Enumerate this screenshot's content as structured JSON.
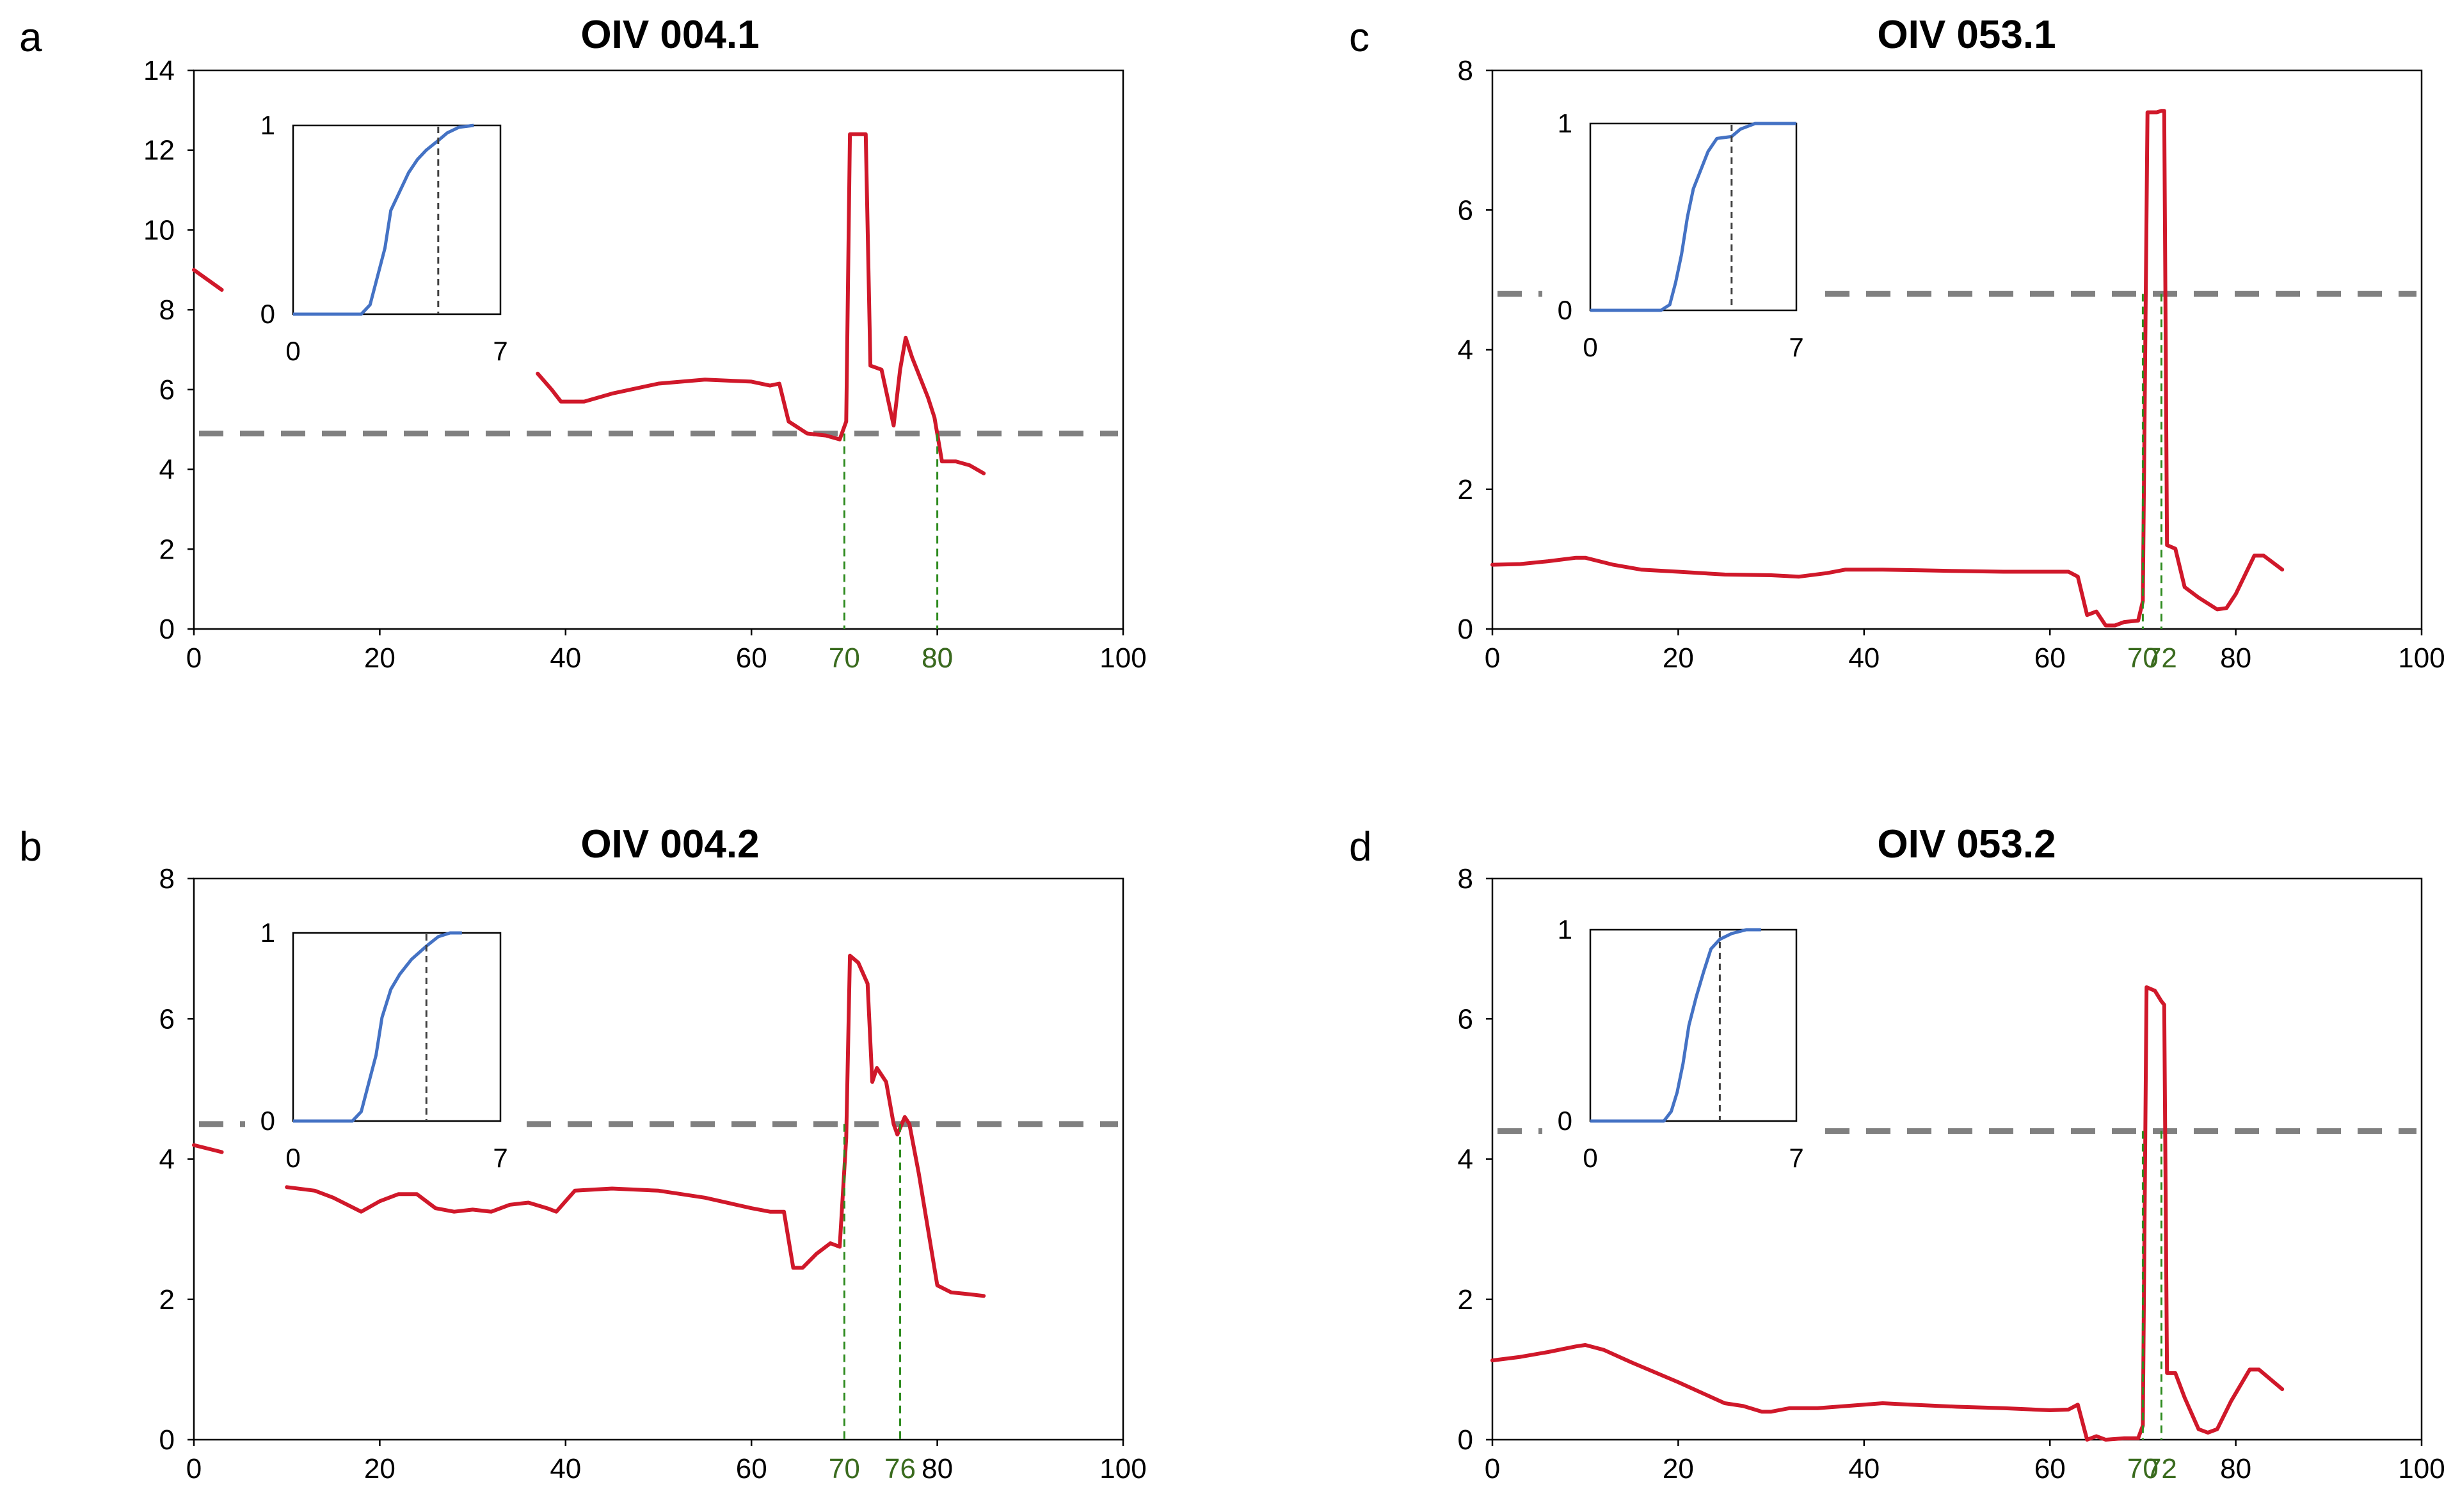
{
  "colors": {
    "series": "#d0182a",
    "threshold": "#808080",
    "marker": "#2e8b1f",
    "marker_label": "#3a6b1e",
    "inset_curve": "#4472c4",
    "inset_marker": "#404040",
    "axis": "#000000"
  },
  "chart_data": [
    {
      "panel": "a",
      "title": "OIV 004.1",
      "type": "line",
      "xlim": [
        0,
        100
      ],
      "ylim": [
        0,
        14
      ],
      "x_ticks": [
        0,
        20,
        40,
        60,
        80,
        100
      ],
      "y_ticks": [
        0,
        2,
        4,
        6,
        8,
        10,
        12,
        14
      ],
      "threshold": 4.9,
      "markers": [
        70,
        80
      ],
      "segments": [
        [
          [
            0,
            9.0
          ],
          [
            3,
            8.5
          ]
        ],
        [
          [
            37,
            6.4
          ],
          [
            38.5,
            6.0
          ],
          [
            39.5,
            5.7
          ],
          [
            42,
            5.7
          ],
          [
            45,
            5.9
          ],
          [
            50,
            6.15
          ],
          [
            55,
            6.25
          ],
          [
            60,
            6.2
          ],
          [
            62,
            6.1
          ],
          [
            63,
            6.15
          ],
          [
            64,
            5.2
          ],
          [
            66,
            4.9
          ],
          [
            68,
            4.85
          ],
          [
            69.5,
            4.75
          ],
          [
            70.2,
            5.2
          ],
          [
            70.6,
            12.4
          ],
          [
            71.6,
            12.4
          ],
          [
            72.3,
            12.4
          ],
          [
            72.8,
            6.6
          ],
          [
            74,
            6.5
          ],
          [
            75.3,
            5.1
          ],
          [
            76,
            6.5
          ],
          [
            76.6,
            7.3
          ],
          [
            77.3,
            6.8
          ],
          [
            79,
            5.8
          ],
          [
            79.7,
            5.3
          ],
          [
            80.5,
            4.2
          ],
          [
            82,
            4.2
          ],
          [
            83.5,
            4.1
          ],
          [
            85,
            3.9
          ]
        ]
      ],
      "inset": {
        "xlim": [
          0,
          7
        ],
        "ylim": [
          0,
          1
        ],
        "x_ticks": [
          0,
          7
        ],
        "y_ticks": [
          0,
          1
        ],
        "marker": 4.9,
        "cdf": [
          [
            0,
            0
          ],
          [
            2.3,
            0
          ],
          [
            2.6,
            0.05
          ],
          [
            2.85,
            0.2
          ],
          [
            3.1,
            0.35
          ],
          [
            3.3,
            0.55
          ],
          [
            3.6,
            0.65
          ],
          [
            3.9,
            0.75
          ],
          [
            4.2,
            0.82
          ],
          [
            4.5,
            0.87
          ],
          [
            4.9,
            0.92
          ],
          [
            5.2,
            0.96
          ],
          [
            5.6,
            0.99
          ],
          [
            6.1,
            1.0
          ]
        ]
      }
    },
    {
      "panel": "b",
      "title": "OIV 004.2",
      "type": "line",
      "xlim": [
        0,
        100
      ],
      "ylim": [
        0,
        8
      ],
      "x_ticks": [
        0,
        20,
        40,
        60,
        80,
        100
      ],
      "y_ticks": [
        0,
        2,
        4,
        6,
        8
      ],
      "threshold": 4.5,
      "markers": [
        70,
        76
      ],
      "segments": [
        [
          [
            0,
            4.2
          ],
          [
            3,
            4.1
          ]
        ],
        [
          [
            10,
            3.6
          ],
          [
            13,
            3.55
          ],
          [
            15,
            3.45
          ],
          [
            18,
            3.25
          ],
          [
            20,
            3.4
          ],
          [
            22,
            3.5
          ],
          [
            24,
            3.5
          ],
          [
            26,
            3.3
          ],
          [
            28,
            3.25
          ],
          [
            30,
            3.28
          ],
          [
            32,
            3.25
          ],
          [
            34,
            3.35
          ],
          [
            36,
            3.38
          ],
          [
            38,
            3.3
          ],
          [
            39,
            3.25
          ],
          [
            41,
            3.55
          ],
          [
            45,
            3.58
          ],
          [
            50,
            3.55
          ],
          [
            55,
            3.45
          ],
          [
            60,
            3.3
          ],
          [
            62,
            3.25
          ],
          [
            63.5,
            3.25
          ],
          [
            64.5,
            2.45
          ],
          [
            65.5,
            2.45
          ],
          [
            67,
            2.65
          ],
          [
            68.5,
            2.8
          ],
          [
            69.5,
            2.75
          ],
          [
            70.2,
            4.3
          ],
          [
            70.6,
            6.9
          ],
          [
            71.5,
            6.8
          ],
          [
            72.5,
            6.5
          ],
          [
            73,
            5.1
          ],
          [
            73.5,
            5.3
          ],
          [
            74.5,
            5.1
          ],
          [
            75.3,
            4.5
          ],
          [
            75.7,
            4.35
          ],
          [
            76.5,
            4.6
          ],
          [
            77,
            4.5
          ],
          [
            78,
            3.8
          ],
          [
            80,
            2.2
          ],
          [
            81.5,
            2.1
          ],
          [
            83,
            2.08
          ],
          [
            85,
            2.05
          ]
        ]
      ],
      "inset": {
        "xlim": [
          0,
          7
        ],
        "ylim": [
          0,
          1
        ],
        "x_ticks": [
          0,
          7
        ],
        "y_ticks": [
          0,
          1
        ],
        "marker": 4.5,
        "cdf": [
          [
            0,
            0
          ],
          [
            2.0,
            0
          ],
          [
            2.3,
            0.05
          ],
          [
            2.55,
            0.2
          ],
          [
            2.8,
            0.35
          ],
          [
            3.0,
            0.55
          ],
          [
            3.3,
            0.7
          ],
          [
            3.6,
            0.78
          ],
          [
            4.0,
            0.86
          ],
          [
            4.5,
            0.93
          ],
          [
            4.9,
            0.98
          ],
          [
            5.3,
            1.0
          ],
          [
            5.7,
            1.0
          ]
        ]
      }
    },
    {
      "panel": "c",
      "title": "OIV 053.1",
      "type": "line",
      "xlim": [
        0,
        100
      ],
      "ylim": [
        0,
        8
      ],
      "x_ticks": [
        0,
        20,
        40,
        60,
        80,
        100
      ],
      "y_ticks": [
        0,
        2,
        4,
        6,
        8
      ],
      "threshold": 4.8,
      "markers": [
        70,
        72
      ],
      "segments": [
        [
          [
            0,
            0.92
          ],
          [
            3,
            0.93
          ],
          [
            6,
            0.97
          ],
          [
            9,
            1.02
          ],
          [
            10,
            1.02
          ],
          [
            13,
            0.92
          ],
          [
            16,
            0.85
          ],
          [
            20,
            0.82
          ],
          [
            25,
            0.78
          ],
          [
            30,
            0.77
          ],
          [
            33,
            0.75
          ],
          [
            36,
            0.8
          ],
          [
            38,
            0.85
          ],
          [
            42,
            0.85
          ],
          [
            46,
            0.84
          ],
          [
            50,
            0.83
          ],
          [
            55,
            0.82
          ],
          [
            60,
            0.82
          ],
          [
            62,
            0.82
          ],
          [
            63,
            0.75
          ],
          [
            64,
            0.2
          ],
          [
            65,
            0.25
          ],
          [
            66,
            0.05
          ],
          [
            67,
            0.05
          ],
          [
            68,
            0.1
          ],
          [
            69.5,
            0.12
          ],
          [
            70,
            0.4
          ],
          [
            70.5,
            7.4
          ],
          [
            71.5,
            7.4
          ],
          [
            72,
            7.42
          ],
          [
            72.3,
            7.42
          ],
          [
            72.6,
            1.2
          ],
          [
            73.5,
            1.15
          ],
          [
            74.5,
            0.6
          ],
          [
            76,
            0.45
          ],
          [
            78,
            0.28
          ],
          [
            79,
            0.3
          ],
          [
            80,
            0.5
          ],
          [
            82,
            1.05
          ],
          [
            83,
            1.05
          ],
          [
            85,
            0.85
          ]
        ]
      ],
      "inset": {
        "xlim": [
          0,
          7
        ],
        "ylim": [
          0,
          1
        ],
        "x_ticks": [
          0,
          7
        ],
        "y_ticks": [
          0,
          1
        ],
        "marker": 4.8,
        "cdf": [
          [
            0,
            0
          ],
          [
            2.4,
            0
          ],
          [
            2.7,
            0.03
          ],
          [
            2.9,
            0.15
          ],
          [
            3.1,
            0.3
          ],
          [
            3.3,
            0.5
          ],
          [
            3.5,
            0.65
          ],
          [
            3.75,
            0.75
          ],
          [
            4.0,
            0.85
          ],
          [
            4.3,
            0.92
          ],
          [
            4.8,
            0.93
          ],
          [
            5.1,
            0.97
          ],
          [
            5.6,
            1.0
          ],
          [
            7.0,
            1.0
          ]
        ]
      }
    },
    {
      "panel": "d",
      "title": "OIV 053.2",
      "type": "line",
      "xlim": [
        0,
        100
      ],
      "ylim": [
        0,
        8
      ],
      "x_ticks": [
        0,
        20,
        40,
        60,
        80,
        100
      ],
      "y_ticks": [
        0,
        2,
        4,
        6,
        8
      ],
      "threshold": 4.4,
      "markers": [
        70,
        72
      ],
      "segments": [
        [
          [
            0,
            1.13
          ],
          [
            3,
            1.18
          ],
          [
            6,
            1.25
          ],
          [
            9,
            1.33
          ],
          [
            10,
            1.35
          ],
          [
            12,
            1.28
          ],
          [
            15,
            1.1
          ],
          [
            20,
            0.82
          ],
          [
            25,
            0.52
          ],
          [
            27,
            0.48
          ],
          [
            29,
            0.4
          ],
          [
            30,
            0.4
          ],
          [
            32,
            0.45
          ],
          [
            35,
            0.45
          ],
          [
            40,
            0.5
          ],
          [
            42,
            0.52
          ],
          [
            45,
            0.5
          ],
          [
            50,
            0.47
          ],
          [
            55,
            0.45
          ],
          [
            60,
            0.42
          ],
          [
            62,
            0.43
          ],
          [
            63,
            0.5
          ],
          [
            64,
            0.0
          ],
          [
            65,
            0.05
          ],
          [
            66,
            0.0
          ],
          [
            68,
            0.02
          ],
          [
            69.5,
            0.02
          ],
          [
            70,
            0.2
          ],
          [
            70.4,
            6.45
          ],
          [
            71.3,
            6.4
          ],
          [
            72,
            6.25
          ],
          [
            72.3,
            6.2
          ],
          [
            72.6,
            0.95
          ],
          [
            73.5,
            0.95
          ],
          [
            74.5,
            0.6
          ],
          [
            76,
            0.15
          ],
          [
            77,
            0.1
          ],
          [
            78,
            0.15
          ],
          [
            79.5,
            0.55
          ],
          [
            81.5,
            1.0
          ],
          [
            82.5,
            1.0
          ],
          [
            85,
            0.72
          ]
        ]
      ],
      "inset": {
        "xlim": [
          0,
          7
        ],
        "ylim": [
          0,
          1
        ],
        "x_ticks": [
          0,
          7
        ],
        "y_ticks": [
          0,
          1
        ],
        "marker": 4.4,
        "cdf": [
          [
            0,
            0
          ],
          [
            2.5,
            0
          ],
          [
            2.75,
            0.05
          ],
          [
            2.95,
            0.15
          ],
          [
            3.15,
            0.3
          ],
          [
            3.35,
            0.5
          ],
          [
            3.6,
            0.65
          ],
          [
            3.85,
            0.78
          ],
          [
            4.1,
            0.9
          ],
          [
            4.4,
            0.95
          ],
          [
            4.8,
            0.98
          ],
          [
            5.3,
            1.0
          ],
          [
            5.8,
            1.0
          ]
        ]
      }
    }
  ]
}
